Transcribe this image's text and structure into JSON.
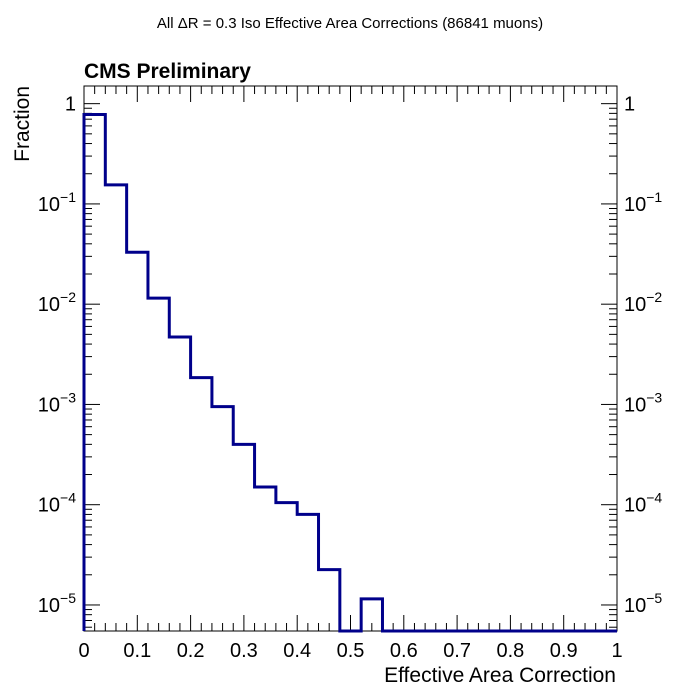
{
  "chart_data": {
    "type": "histogram",
    "title": "All ΔR = 0.3 Iso Effective Area Corrections (86841 muons)",
    "label": "CMS Preliminary",
    "xlabel": "Effective Area Correction",
    "ylabel": "Fraction",
    "xlim": [
      0,
      1
    ],
    "ylim": [
      5.5e-06,
      1.5
    ],
    "yscale": "log",
    "grid": false,
    "color": "#00008b",
    "x_ticks": [
      "0",
      "0.1",
      "0.2",
      "0.3",
      "0.4",
      "0.5",
      "0.6",
      "0.7",
      "0.8",
      "0.9",
      "1"
    ],
    "y_ticks": [
      {
        "base": "1",
        "exp": ""
      },
      {
        "base": "10",
        "exp": "−1"
      },
      {
        "base": "10",
        "exp": "−2"
      },
      {
        "base": "10",
        "exp": "−3"
      },
      {
        "base": "10",
        "exp": "−4"
      },
      {
        "base": "10",
        "exp": "−5"
      }
    ],
    "bin_edges": [
      0,
      0.04,
      0.08,
      0.12,
      0.16,
      0.2,
      0.24,
      0.28,
      0.32,
      0.36,
      0.4,
      0.44,
      0.48,
      0.52,
      0.56,
      0.6,
      1.0
    ],
    "values": [
      0.78,
      0.155,
      0.033,
      0.0115,
      0.0047,
      0.00185,
      0.00095,
      0.0004,
      0.00015,
      0.000105,
      8e-05,
      2.25e-05,
      0,
      1.15e-05,
      0,
      0
    ]
  }
}
